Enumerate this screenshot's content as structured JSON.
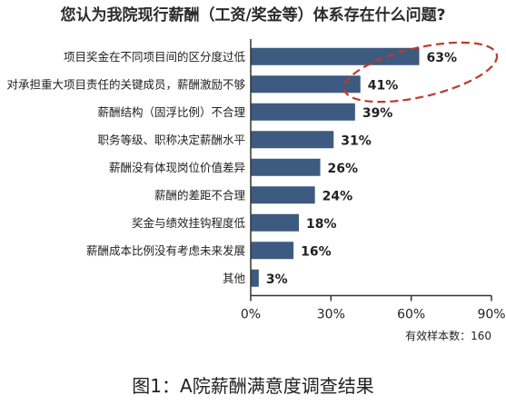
{
  "title": "您认为我院现行薪酬（工资/奖金等）体系存在什么问题?",
  "caption": "图1：A院薪酬满意度调查结果",
  "sample_note": "有效样本数：160",
  "chart_data": {
    "type": "bar",
    "orientation": "horizontal",
    "title": "您认为我院现行薪酬（工资/奖金等）体系存在什么问题?",
    "categories": [
      "项目奖金在不同项目间的区分度过低",
      "对承担重大项目责任的关键成员，薪酬激励不够",
      "薪酬结构（固浮比例）不合理",
      "职务等级、职称决定薪酬水平",
      "薪酬没有体现岗位价值差异",
      "薪酬的差距不合理",
      "奖金与绩效挂钩程度低",
      "薪酬成本比例没有考虑未来发展",
      "其他"
    ],
    "values": [
      63,
      41,
      39,
      31,
      26,
      24,
      18,
      16,
      3
    ],
    "value_labels": [
      "63%",
      "41%",
      "39%",
      "31%",
      "26%",
      "24%",
      "18%",
      "16%",
      "3%"
    ],
    "xlim": [
      0,
      90
    ],
    "xticks": [
      0,
      30,
      60,
      90
    ],
    "xtick_labels": [
      "0%",
      "30%",
      "60%",
      "90%"
    ],
    "highlighted": [
      "63%",
      "41%"
    ],
    "bar_color": "#3d5a80",
    "highlight_color": "#c0392b",
    "grid": false
  }
}
